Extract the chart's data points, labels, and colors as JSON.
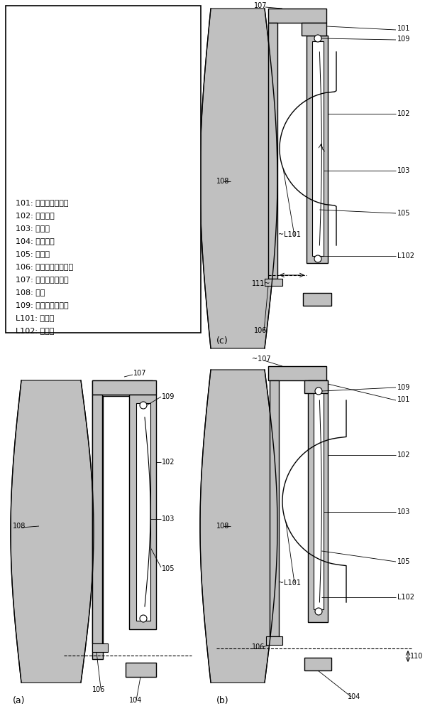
{
  "bg_color": "#ffffff",
  "gray_fill": "#c0c0c0",
  "white_fill": "#ffffff",
  "black_line": "#000000",
  "legend_lines": [
    "101: 圆筒形状的透镜",
    "102: 摄像元件",
    "103: 受光部",
    "104: 层叠基板",
    "105: 开口部",
    "106: 层叠基板的上表面",
    "107: 红外线截止玻璃",
    "108: 透镜",
    "109: 倒装芯片接合料",
    "L101: 物侧面",
    "L102: 像侧面"
  ]
}
